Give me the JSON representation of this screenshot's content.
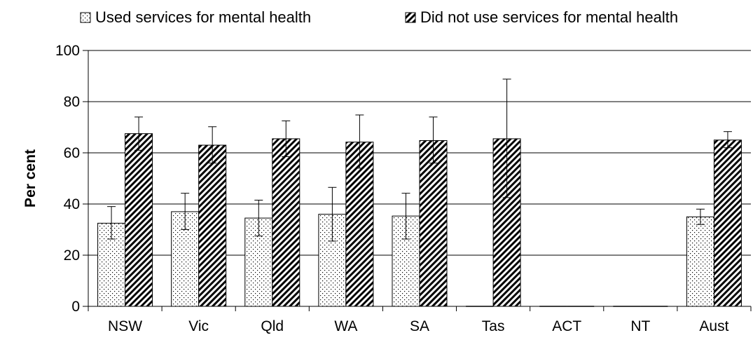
{
  "chart_data": {
    "type": "bar",
    "title": "",
    "xlabel": "",
    "ylabel": "Per cent",
    "ylim": [
      0,
      100
    ],
    "yticks": [
      0,
      20,
      40,
      60,
      80,
      100
    ],
    "grid": true,
    "legend_position": "top",
    "categories": [
      "NSW",
      "Vic",
      "Qld",
      "WA",
      "SA",
      "Tas",
      "ACT",
      "NT",
      "Aust"
    ],
    "series": [
      {
        "name": "Used services for mental health",
        "pattern": "dots",
        "values": [
          32.5,
          37,
          34.5,
          36,
          35.3,
          0,
          0,
          0,
          35
        ],
        "error_low": [
          26.3,
          30,
          27.5,
          25.5,
          26.3,
          null,
          null,
          null,
          32
        ],
        "error_high": [
          39,
          44.2,
          41.5,
          46.5,
          44.2,
          null,
          null,
          null,
          38
        ]
      },
      {
        "name": "Did not use services for mental health",
        "pattern": "diagonal-hatch",
        "values": [
          67.5,
          63,
          65.5,
          64.2,
          64.8,
          65.5,
          0,
          0,
          65
        ],
        "error_low": [
          61,
          56,
          58.5,
          54,
          56,
          42.5,
          null,
          null,
          62
        ],
        "error_high": [
          74,
          70.2,
          72.5,
          74.8,
          74,
          88.8,
          null,
          null,
          68.3
        ]
      }
    ]
  }
}
